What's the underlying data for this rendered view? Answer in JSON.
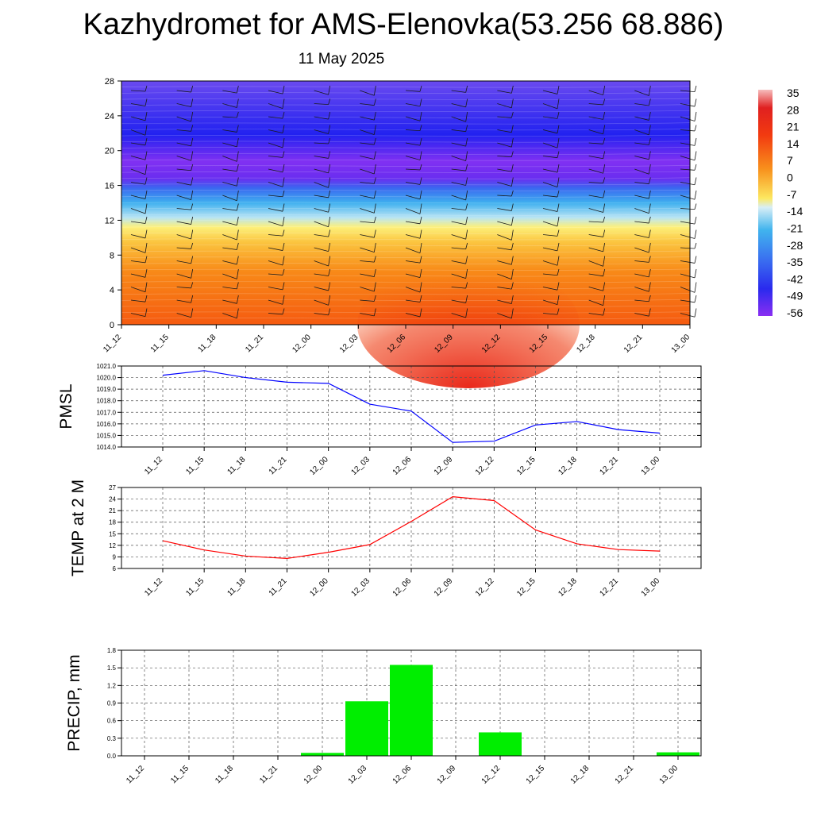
{
  "title": "Kazhydromet for AMS-Elenovka(53.256 68.886)",
  "subtitle": "11 May 2025",
  "chart_data": [
    {
      "type": "heatmap",
      "x_ticks": [
        "11_12",
        "11_15",
        "11_18",
        "11_21",
        "12_00",
        "12_03",
        "12_06",
        "12_09",
        "12_12",
        "12_15",
        "12_18",
        "12_21",
        "13_00"
      ],
      "y_ticks": [
        "0",
        "4",
        "8",
        "12",
        "16",
        "20",
        "24",
        "28"
      ],
      "ylim": [
        0,
        28
      ],
      "colorbar_labels": [
        "35",
        "28",
        "21",
        "14",
        "7",
        "0",
        "-7",
        "-14",
        "-21",
        "-28",
        "-35",
        "-42",
        "-49",
        "-56"
      ],
      "colorbar_range": [
        -60,
        38
      ],
      "overlay": "wind-barbs"
    },
    {
      "type": "line",
      "ylabel": "PMSL",
      "x": [
        "11_12",
        "11_15",
        "11_18",
        "11_21",
        "12_00",
        "12_03",
        "12_06",
        "12_09",
        "12_12",
        "12_15",
        "12_18",
        "12_21",
        "13_00"
      ],
      "values": [
        1020.2,
        1020.6,
        1020.0,
        1019.6,
        1019.5,
        1017.7,
        1017.1,
        1014.4,
        1014.5,
        1015.9,
        1016.2,
        1015.5,
        1015.2
      ],
      "y_ticks": [
        "1021.0",
        "1020.0",
        "1019.0",
        "1018.0",
        "1017.0",
        "1016.0",
        "1015.0",
        "1014.0"
      ],
      "ylim": [
        1014.0,
        1021.0
      ],
      "color": "#0000ff",
      "grid": true
    },
    {
      "type": "line",
      "ylabel": "TEMP at 2 M",
      "x": [
        "11_12",
        "11_15",
        "11_18",
        "11_21",
        "12_00",
        "12_03",
        "12_06",
        "12_09",
        "12_12",
        "12_15",
        "12_18",
        "12_21",
        "13_00"
      ],
      "values": [
        13.2,
        10.8,
        9.2,
        8.6,
        10.2,
        12.2,
        18.2,
        24.6,
        23.6,
        16.0,
        12.4,
        10.9,
        10.5
      ],
      "y_ticks": [
        "27",
        "24",
        "21",
        "18",
        "15",
        "12",
        "9",
        "6"
      ],
      "ylim": [
        6,
        27
      ],
      "color": "#ff0000",
      "grid": true
    },
    {
      "type": "bar",
      "ylabel": "PRECIP, mm",
      "categories": [
        "11_12",
        "11_15",
        "11_18",
        "11_21",
        "12_00",
        "12_03",
        "12_06",
        "12_09",
        "12_12",
        "12_15",
        "12_18",
        "12_21",
        "13_00"
      ],
      "values": [
        0,
        0,
        0,
        0,
        0.05,
        0.93,
        1.55,
        0,
        0.4,
        0,
        0,
        0,
        0.06
      ],
      "y_ticks": [
        "1.8",
        "1.5",
        "1.2",
        "0.9",
        "0.6",
        "0.3",
        "0.0"
      ],
      "ylim": [
        0,
        1.8
      ],
      "color": "#00ee00",
      "grid": true
    }
  ]
}
